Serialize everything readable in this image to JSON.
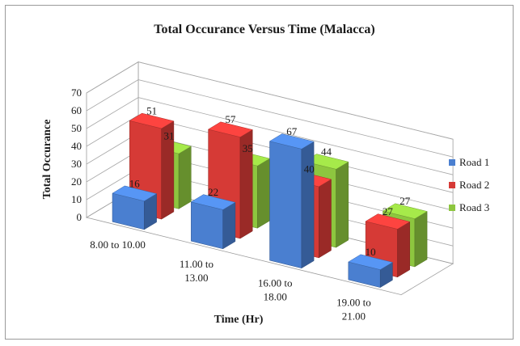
{
  "chart_data": {
    "type": "bar",
    "title": "Total Occurance Versus Time (Malacca)",
    "xlabel": "Time (Hr)",
    "ylabel": "Total Occurance",
    "ylim": [
      0,
      70
    ],
    "yticks": [
      0,
      10,
      20,
      30,
      40,
      50,
      60,
      70
    ],
    "categories": [
      [
        "8.00 to 10.00"
      ],
      [
        "11.00 to",
        "13.00"
      ],
      [
        "16.00 to",
        "18.00"
      ],
      [
        "19.00 to",
        "21.00"
      ]
    ],
    "series": [
      {
        "name": "Road 1",
        "color": "#4a7fd0",
        "values": [
          16,
          22,
          67,
          10
        ]
      },
      {
        "name": "Road 2",
        "color": "#d63a36",
        "values": [
          51,
          57,
          40,
          27
        ]
      },
      {
        "name": "Road 3",
        "color": "#8dc63f",
        "values": [
          31,
          35,
          44,
          27
        ]
      }
    ],
    "legend_position": "right",
    "grid": true,
    "projection": "3d"
  }
}
